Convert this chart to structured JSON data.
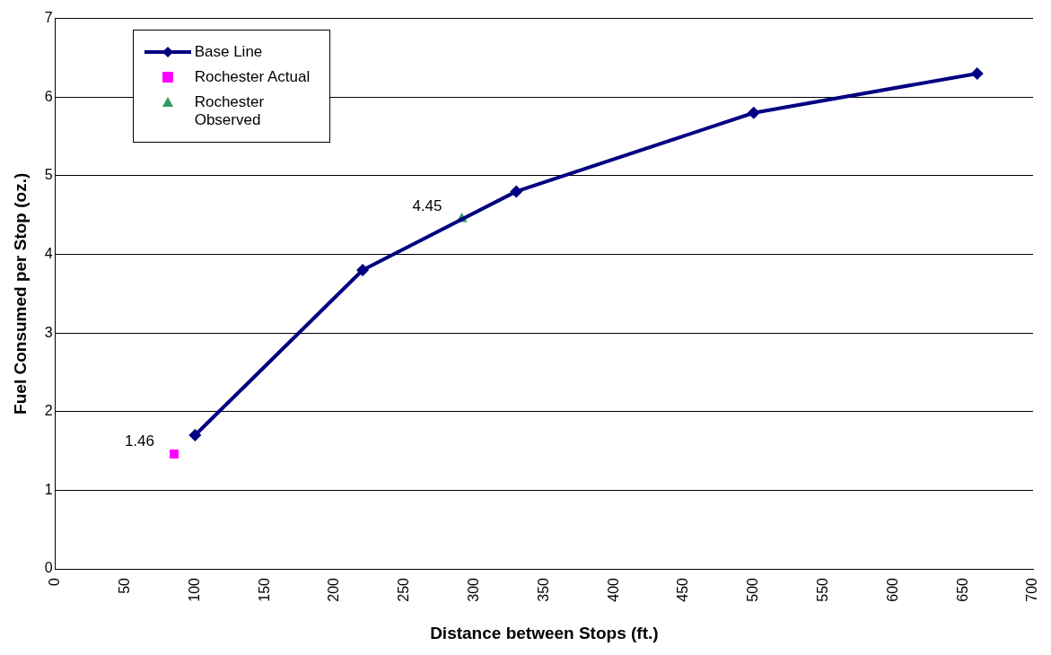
{
  "chart_data": {
    "type": "line",
    "xlabel": "Distance between Stops (ft.)",
    "ylabel": "Fuel Consumed per Stop (oz.)",
    "xlim": [
      0,
      700
    ],
    "xticks": [
      0,
      50,
      100,
      150,
      200,
      250,
      300,
      350,
      400,
      450,
      500,
      550,
      600,
      650,
      700
    ],
    "ylim": [
      0,
      7
    ],
    "yticks": [
      0,
      1,
      2,
      3,
      4,
      5,
      6,
      7
    ],
    "grid": "y",
    "legend": "top left",
    "series": [
      {
        "name": "Base Line",
        "color": "#000080",
        "marker": "diamond",
        "x": [
          100,
          220,
          330,
          500,
          660
        ],
        "values": [
          1.7,
          3.8,
          4.8,
          5.8,
          6.3
        ]
      },
      {
        "name": "Rochester Actual",
        "type": "scatter",
        "color": "#ff00ff",
        "marker": "square",
        "x": [
          85
        ],
        "values": [
          1.46
        ],
        "value_labels": [
          "1.46"
        ]
      },
      {
        "name": "Rochester Observed",
        "type": "scatter",
        "color": "#339966",
        "marker": "triangle",
        "x": [
          291
        ],
        "values": [
          4.45
        ],
        "value_labels": [
          "4.45"
        ]
      }
    ]
  }
}
